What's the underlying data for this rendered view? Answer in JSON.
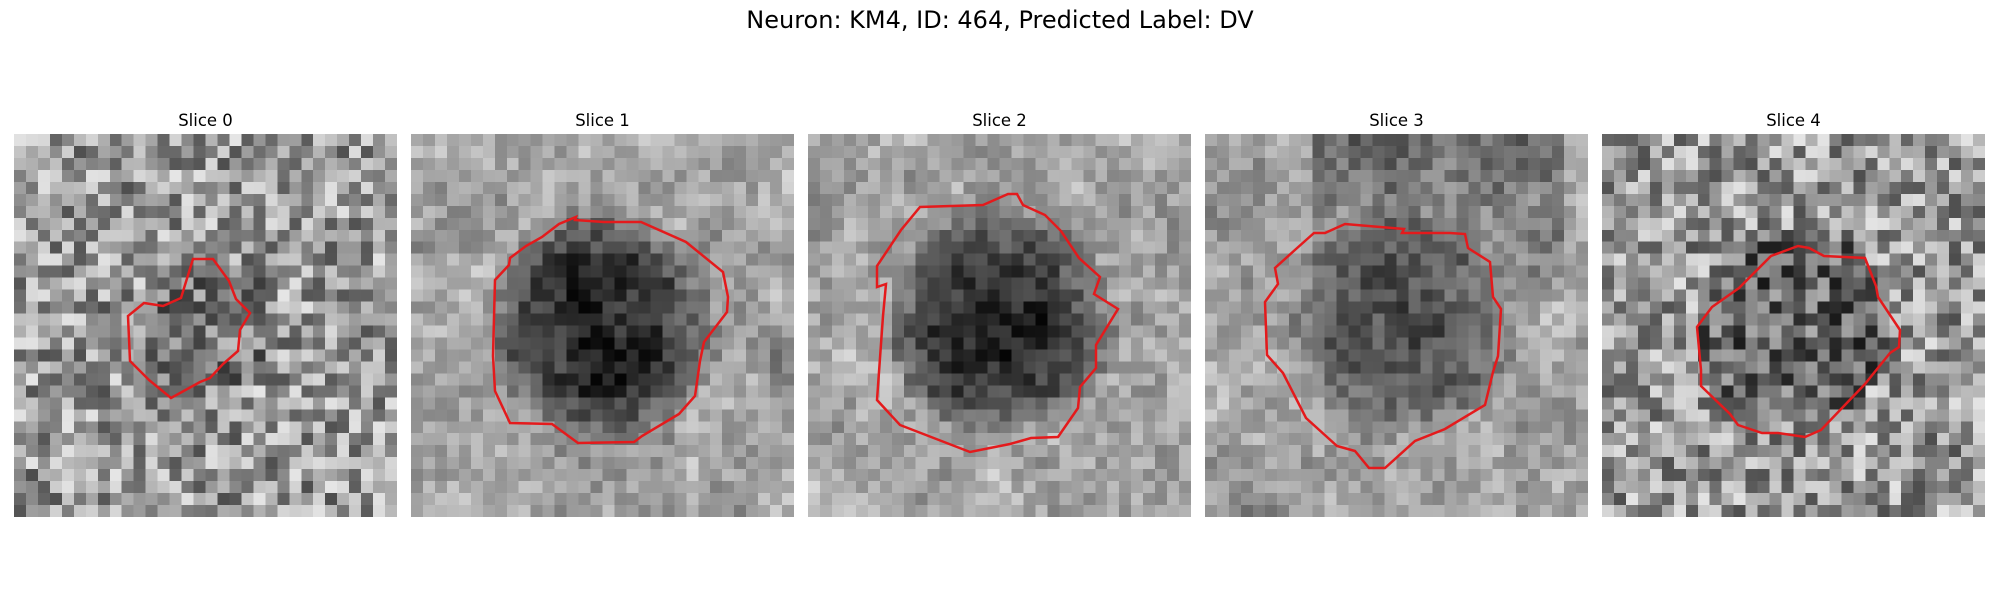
{
  "figure": {
    "title": "Neuron: KM4, ID: 464, Predicted Label: DV"
  },
  "panels": [
    {
      "title": "Slice 0",
      "contour_color": "#e41a1c",
      "texture": "fine-noise",
      "cell_darkness": 0.35
    },
    {
      "title": "Slice 1",
      "contour_color": "#e41a1c",
      "texture": "smooth",
      "cell_darkness": 0.85
    },
    {
      "title": "Slice 2",
      "contour_color": "#e41a1c",
      "texture": "smooth",
      "cell_darkness": 0.85
    },
    {
      "title": "Slice 3",
      "contour_color": "#e41a1c",
      "texture": "dark-top",
      "cell_darkness": 0.55
    },
    {
      "title": "Slice 4",
      "contour_color": "#e41a1c",
      "texture": "fine-noise",
      "cell_darkness": 0.6
    }
  ]
}
